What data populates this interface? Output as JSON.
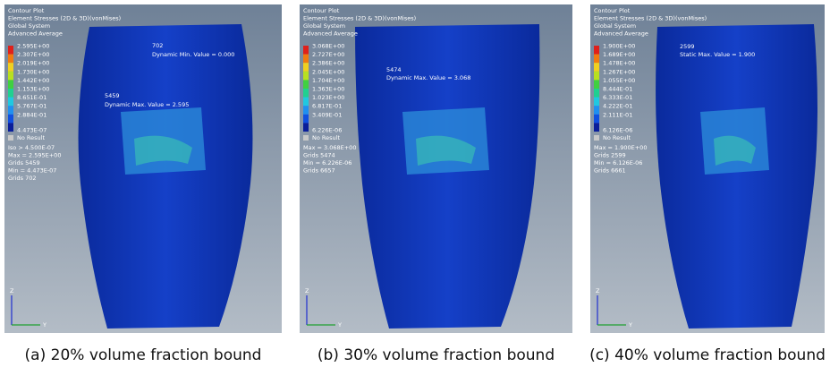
{
  "panels": [
    {
      "header": [
        "Contour Plot",
        "Element Stresses (2D & 3D)(vonMises)",
        "Global System",
        "Advanced Average"
      ],
      "legend": [
        "2.595E+00",
        "2.307E+00",
        "2.019E+00",
        "1.730E+00",
        "1.442E+00",
        "1.153E+00",
        "8.651E-01",
        "5.767E-01",
        "2.884E-01",
        "4.473E-07"
      ],
      "no_result": "No Result",
      "stats": [
        "Iso > 4.500E-07",
        "Max = 2.595E+00",
        "Grids 5459",
        "Min = 4.473E-07",
        "Grids 702"
      ],
      "annotations": [
        "702",
        "Dynamic Min. Value = 0.000",
        "5459",
        "Dynamic Max. Value = 2.595"
      ],
      "axes": [
        "Z",
        "Y"
      ],
      "caption": "(a) 20% volume fraction bound"
    },
    {
      "header": [
        "Contour Plot",
        "Element Stresses (2D & 3D)(vonMises)",
        "Global System",
        "Advanced Average"
      ],
      "legend": [
        "3.068E+00",
        "2.727E+00",
        "2.386E+00",
        "2.045E+00",
        "1.704E+00",
        "1.363E+00",
        "1.023E+00",
        "6.817E-01",
        "3.409E-01",
        "6.226E-06"
      ],
      "no_result": "No Result",
      "stats": [
        "Max = 3.068E+00",
        "Grids 5474",
        "Min = 6.226E-06",
        "Grids 6657"
      ],
      "annotations": [
        "5474",
        "Dynamic Max. Value = 3.068"
      ],
      "axes": [
        "Z",
        "Y"
      ],
      "caption": "(b) 30% volume fraction bound"
    },
    {
      "header": [
        "Contour Plot",
        "Element Stresses (2D & 3D)(vonMises)",
        "Global System",
        "Advanced Average"
      ],
      "legend": [
        "1.900E+00",
        "1.689E+00",
        "1.478E+00",
        "1.267E+00",
        "1.055E+00",
        "8.444E-01",
        "6.333E-01",
        "4.222E-01",
        "2.111E-01",
        "6.126E-06"
      ],
      "no_result": "No Result",
      "stats": [
        "Max = 1.900E+00",
        "Grids 2599",
        "Min = 6.126E-06",
        "Grids 6661"
      ],
      "annotations": [
        "2599",
        "Static Max. Value = 1.900"
      ],
      "axes": [
        "Z",
        "Y"
      ],
      "caption": "(c) 40% volume fraction bound"
    }
  ]
}
